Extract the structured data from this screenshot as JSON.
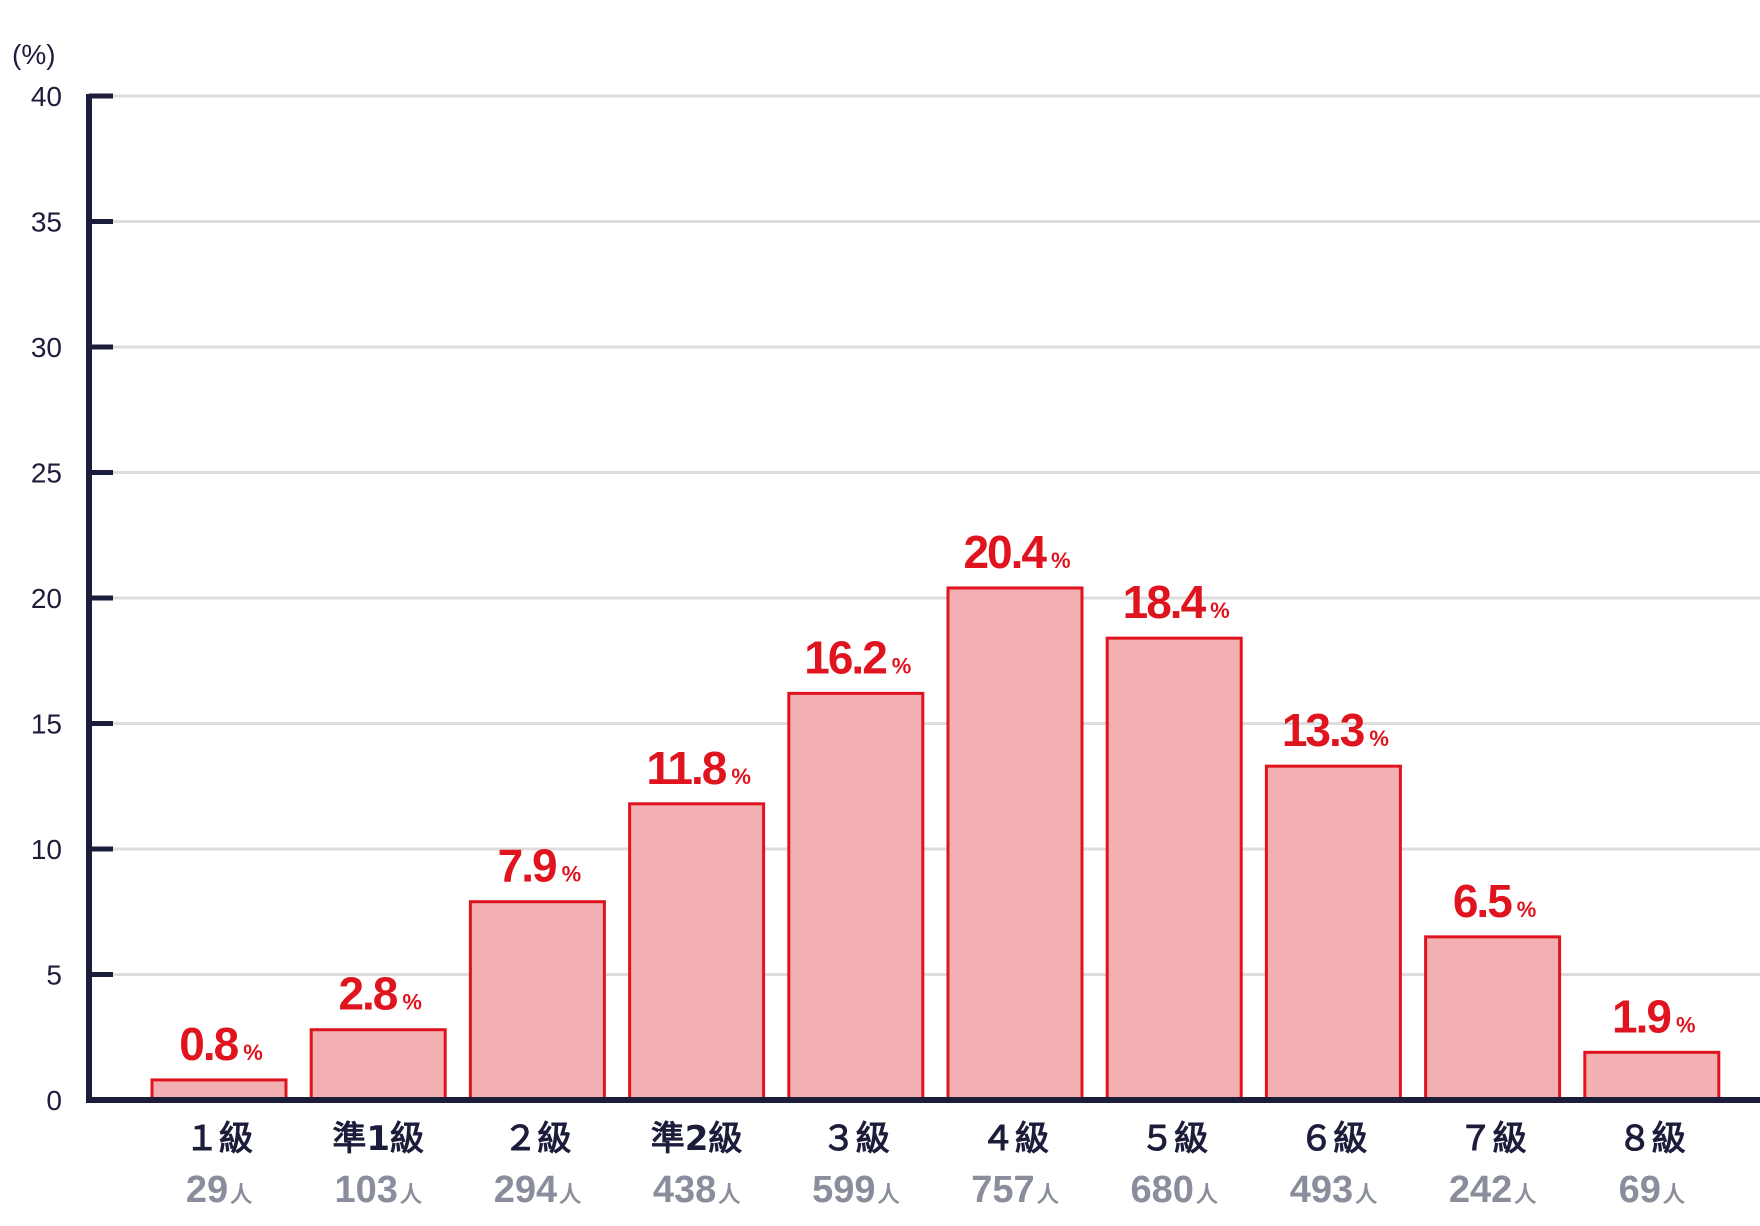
{
  "chart_data": {
    "type": "bar",
    "title": "",
    "ylabel": "(%)",
    "xlabel": "",
    "ylim": [
      0,
      40
    ],
    "yticks": [
      0,
      5,
      10,
      15,
      20,
      25,
      30,
      35,
      40
    ],
    "grid": true,
    "categories": [
      "１級",
      "準1級",
      "２級",
      "準2級",
      "３級",
      "４級",
      "５級",
      "６級",
      "７級",
      "８級"
    ],
    "values": [
      0.8,
      2.8,
      7.9,
      11.8,
      16.2,
      20.4,
      18.4,
      13.3,
      6.5,
      1.9
    ],
    "value_labels": [
      "0.8",
      "2.8",
      "7.9",
      "11.8",
      "16.2",
      "20.4",
      "18.4",
      "13.3",
      "6.5",
      "1.9"
    ],
    "value_unit": "%",
    "counts": [
      "29",
      "103",
      "294",
      "438",
      "599",
      "757",
      "680",
      "493",
      "242",
      "69"
    ],
    "count_unit": "人",
    "colors": {
      "bar_fill": "#f2b0b3",
      "bar_stroke": "#e0141e",
      "value_text": "#e0141e",
      "axis": "#1c1d3b",
      "grid": "#dddddd",
      "category_text": "#1c1d3b",
      "count_text": "#8a8d9c"
    }
  }
}
